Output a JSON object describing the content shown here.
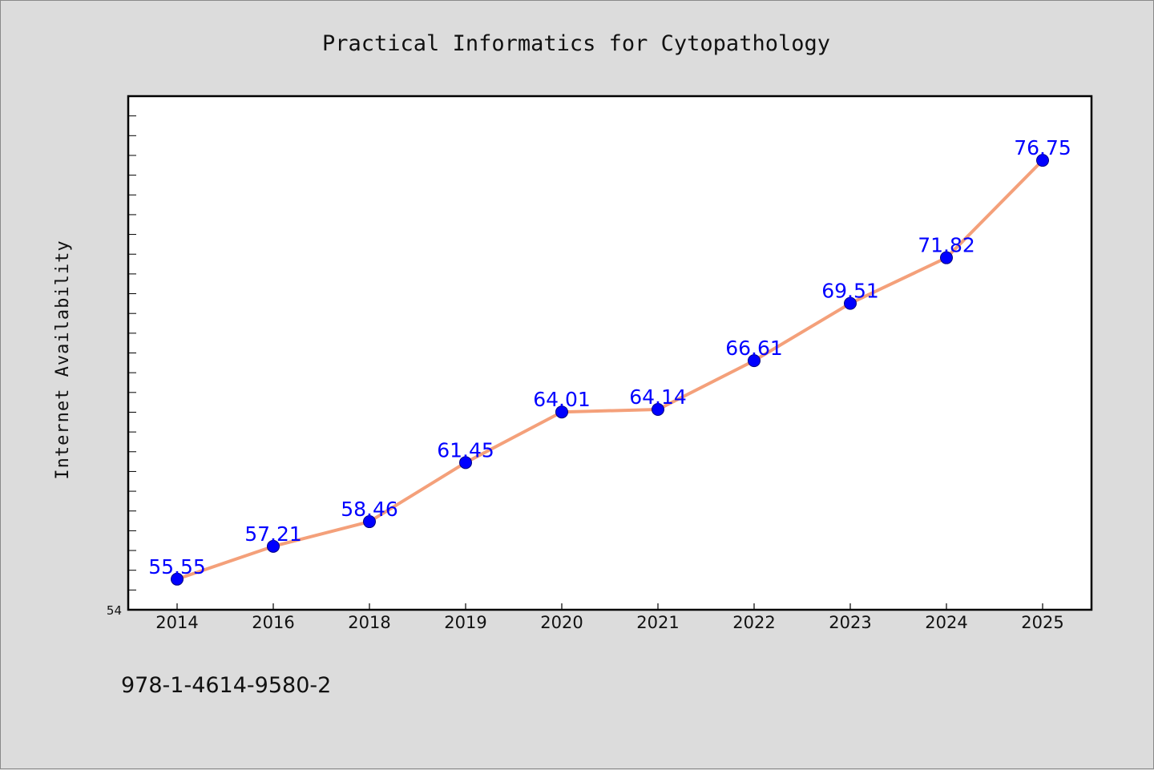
{
  "chart_data": {
    "type": "line",
    "title": "Practical Informatics for Cytopathology",
    "xlabel": "",
    "ylabel": "Internet Availability",
    "categories": [
      "2014",
      "2016",
      "2018",
      "2019",
      "2020",
      "2021",
      "2022",
      "2023",
      "2024",
      "2025"
    ],
    "series": [
      {
        "values": [
          55.55,
          57.21,
          58.46,
          61.45,
          64.01,
          64.14,
          66.61,
          69.51,
          71.82,
          76.75
        ],
        "labels": [
          "55.55",
          "57.21",
          "58.46",
          "61.45",
          "64.01",
          "64.14",
          "66.61",
          "69.51",
          "71.82",
          "76.75"
        ]
      }
    ],
    "ylim": [
      54,
      80
    ],
    "ymin_label": "54",
    "grid": false,
    "line_color": "#f4a07a",
    "marker_color": "#0000ff",
    "label_color": "#0000ff",
    "plot_background": "#ffffff",
    "figure_background": "#dcdcdc"
  },
  "footnote": "978-1-4614-9580-2"
}
